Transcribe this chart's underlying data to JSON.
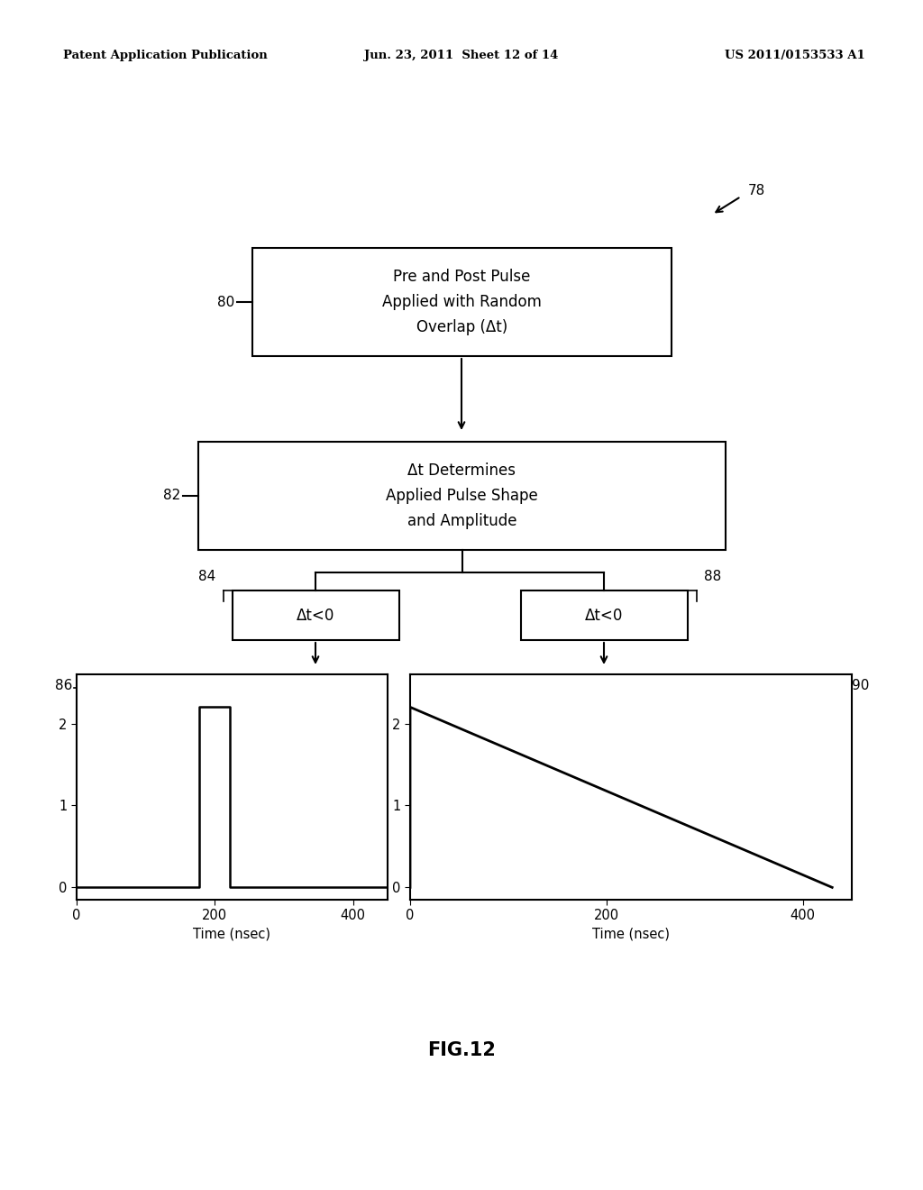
{
  "bg_color": "#ffffff",
  "header_left": "Patent Application Publication",
  "header_mid": "Jun. 23, 2011  Sheet 12 of 14",
  "header_right": "US 2011/0153533 A1",
  "fig_label": "FIG.12",
  "ref_num_78": "78",
  "ref_num_80": "80",
  "ref_num_82": "82",
  "ref_num_84": "84",
  "ref_num_86": "86",
  "ref_num_88": "88",
  "ref_num_90": "90",
  "box1_text": "Pre and Post Pulse\nApplied with Random\nOverlap (Δt)",
  "box2_text": "Δt Determines\nApplied Pulse Shape\nand Amplitude",
  "box3_text": "Δt<0",
  "box4_text": "Δt<0",
  "xlabel": "Time (nsec)",
  "xticks": [
    0,
    200,
    400
  ],
  "yticks": [
    0,
    1,
    2
  ],
  "plot_xlim": [
    0,
    450
  ],
  "plot_ylim_min": -0.15,
  "plot_ylim_max": 2.6
}
